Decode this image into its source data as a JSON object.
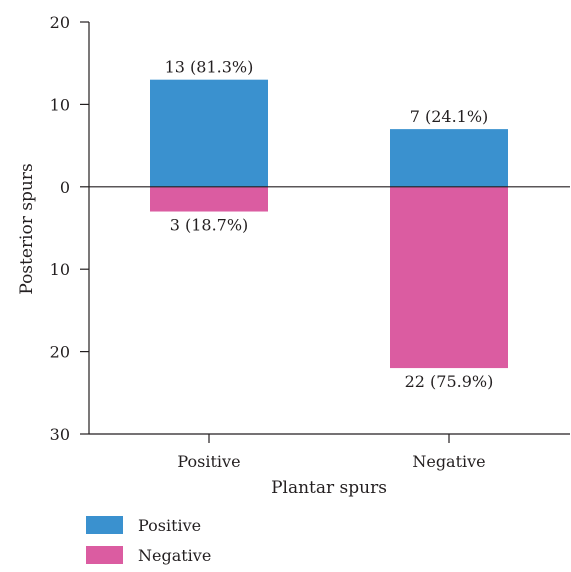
{
  "chart_data": {
    "type": "bar",
    "subtype": "diverging-stacked",
    "xlabel": "Plantar spurs",
    "ylabel": "Posterior spurs",
    "categories": [
      "Positive",
      "Negative"
    ],
    "ylim": [
      -30,
      20
    ],
    "y_ticks": [
      {
        "value": 20,
        "label": "20"
      },
      {
        "value": 10,
        "label": "10"
      },
      {
        "value": 0,
        "label": "0"
      },
      {
        "value": -10,
        "label": "10"
      },
      {
        "value": -20,
        "label": "20"
      },
      {
        "value": -30,
        "label": "30"
      }
    ],
    "series": [
      {
        "name": "Positive",
        "color": "#3a91cf",
        "direction": "up",
        "values": [
          13,
          7
        ],
        "labels": [
          "13 (81.3%)",
          "7 (24.1%)"
        ]
      },
      {
        "name": "Negative",
        "color": "#db5ca1",
        "direction": "down",
        "values": [
          3,
          22
        ],
        "labels": [
          "3 (18.7%)",
          "22 (75.9%)"
        ]
      }
    ],
    "zero_line": true,
    "grid": false,
    "legend_position": "bottom-left"
  }
}
